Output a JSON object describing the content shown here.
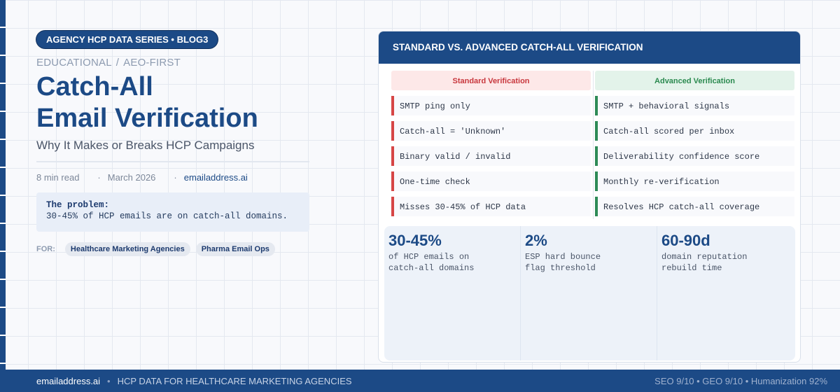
{
  "series_label": "AGENCY HCP DATA SERIES • BLOG3",
  "eyebrow": {
    "category": "EDUCATIONAL",
    "separator": "/",
    "focus": "AEO-FIRST"
  },
  "headline": {
    "line1": "Catch-All",
    "line2": "Email Verification"
  },
  "subtitle": "Why It Makes or Breaks HCP Campaigns",
  "meta": {
    "read_time": "8 min read",
    "date": "March 2026",
    "site": "emailaddress.ai"
  },
  "problem": {
    "label": "The problem:",
    "text": "30-45% of HCP emails are on catch-all domains."
  },
  "audience": {
    "label": "FOR:",
    "tags": [
      "Healthcare Marketing Agencies",
      "Pharma Email Ops"
    ]
  },
  "panel": {
    "title": "STANDARD VS. ADVANCED CATCH-ALL VERIFICATION",
    "standard_heading": "Standard Verification",
    "advanced_heading": "Advanced Verification",
    "rows": [
      {
        "standard": "SMTP ping only",
        "advanced": "SMTP + behavioral signals"
      },
      {
        "standard": "Catch-all = 'Unknown'",
        "advanced": "Catch-all scored per inbox"
      },
      {
        "standard": "Binary valid / invalid",
        "advanced": "Deliverability confidence score"
      },
      {
        "standard": "One-time check",
        "advanced": "Monthly re-verification"
      },
      {
        "standard": "Misses 30-45% of HCP data",
        "advanced": "Resolves HCP catch-all coverage"
      }
    ],
    "stats": [
      {
        "value": "30-45%",
        "label": "of HCP emails on\ncatch-all domains"
      },
      {
        "value": "2%",
        "label": "ESP hard bounce\nflag threshold"
      },
      {
        "value": "60-90d",
        "label": "domain reputation\nrebuild time"
      }
    ]
  },
  "footer": {
    "brand": "emailaddress.ai",
    "tagline": "HCP DATA FOR HEALTHCARE MARKETING AGENCIES",
    "scores": "SEO 9/10 • GEO 9/10 • Humanization 92%"
  },
  "colors": {
    "brand_navy": "#1c4a86",
    "standard_red": "#d64545",
    "advanced_green": "#2e8b57"
  }
}
